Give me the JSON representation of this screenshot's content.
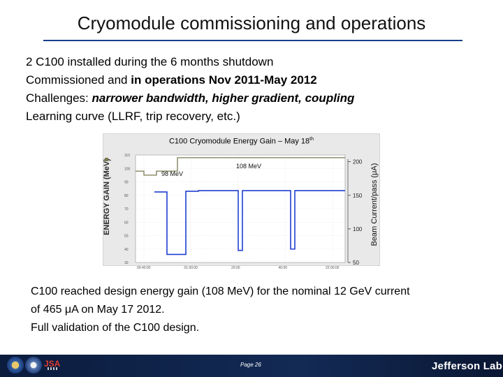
{
  "slide": {
    "title": "Cryomodule commissioning and operations"
  },
  "bullets": {
    "line1": "2 C100 installed during the 6 months shutdown",
    "line2_prefix": "Commissioned and ",
    "line2_bold": "in operations Nov 2011-May 2012",
    "line3_prefix": "Challenges: ",
    "line3_bold_italic": "narrower bandwidth, higher gradient, coupling",
    "line4": "Learning curve (LLRF, trip recovery, etc.)"
  },
  "chart_data": {
    "type": "line",
    "title": "C100 Cryomodule Energy Gain – May 18",
    "title_sup": "th",
    "ylabel_left": "ENERGY GAIN (MeV)",
    "ylabel_right": "Beam Current/pass (μA)",
    "annotations": [
      "98 MeV",
      "108 MeV"
    ],
    "left_axis_ticks": [
      "110",
      "100",
      "90",
      "80",
      "70",
      "60",
      "50",
      "40",
      "30"
    ],
    "left_ylim": [
      30,
      110
    ],
    "right_axis_ticks": [
      "200",
      "150",
      "100",
      "50"
    ],
    "right_ylim": [
      50,
      210
    ],
    "x_ticks": [
      "00:40:00",
      "01:00:00",
      "20:00",
      "40:00",
      "22:00:00"
    ],
    "series": [
      {
        "name": "Energy gain",
        "color": "#7a7a50",
        "points": [
          [
            0,
            98
          ],
          [
            4,
            98
          ],
          [
            4,
            95
          ],
          [
            10,
            95
          ],
          [
            10,
            98
          ],
          [
            20,
            98
          ],
          [
            20,
            108
          ],
          [
            100,
            108
          ]
        ]
      },
      {
        "name": "Beam current",
        "color": "#1f3fd0",
        "segments": [
          [
            [
              9,
              155
            ],
            [
              15,
              155
            ],
            [
              15,
              62
            ],
            [
              24,
              62
            ],
            [
              24,
              156
            ],
            [
              30,
              156
            ],
            [
              30,
              157
            ],
            [
              49,
              157
            ],
            [
              49,
              68
            ],
            [
              51,
              68
            ],
            [
              51,
              157
            ],
            [
              74,
              157
            ],
            [
              74,
              70
            ],
            [
              76,
              70
            ],
            [
              76,
              157
            ],
            [
              100,
              157
            ]
          ]
        ]
      }
    ],
    "grid": true,
    "legend": "none"
  },
  "body": {
    "line1": "C100 reached design energy gain (108 MeV) for the nominal 12 GeV current",
    "line2": "of 465 μA on May 17 2012.",
    "line3": "Full validation of the C100 design."
  },
  "footer": {
    "page": "Page 26",
    "logo_text": "Jefferson Lab",
    "jsa_text": "JSA",
    "colors": {
      "bar": "#0b1c3d",
      "accent": "#e23b2e"
    }
  }
}
